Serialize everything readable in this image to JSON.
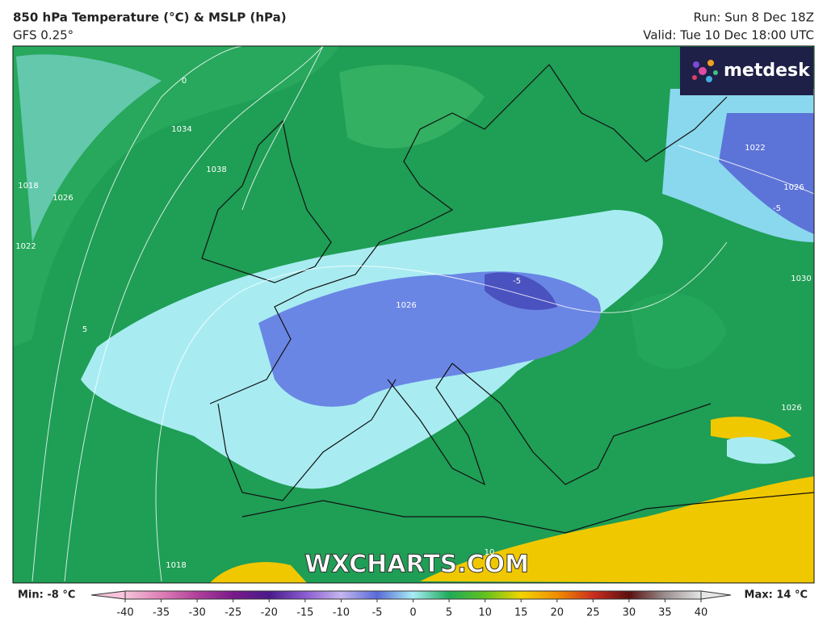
{
  "header": {
    "title": "850 hPa Temperature (°C) & MSLP (hPa)",
    "model": "GFS 0.25°",
    "run": "Run: Sun 8 Dec 18Z",
    "valid": "Valid: Tue 10 Dec 18:00 UTC"
  },
  "logo": "metdesk",
  "watermark": "WXCHARTS.COM",
  "contour_labels": [
    "1034",
    "1038",
    "1026",
    "1018",
    "1022",
    "1026",
    "1022",
    "1026",
    "1018",
    "1026",
    "10",
    "-5",
    "0",
    "5",
    "-5",
    "1030"
  ],
  "colorbar": {
    "min_label": "Min: -8 °C",
    "max_label": "Max: 14 °C",
    "ticks": [
      -40,
      -35,
      -30,
      -25,
      -20,
      -15,
      -10,
      -5,
      0,
      5,
      10,
      15,
      20,
      25,
      30,
      35,
      40
    ],
    "colors": [
      "#f5c4da",
      "#de7fb6",
      "#b0409a",
      "#7a1a8a",
      "#4a1a8a",
      "#8a5ad0",
      "#c4b6ee",
      "#5a6ad8",
      "#a6eef4",
      "#1faa5a",
      "#62c21e",
      "#f2d400",
      "#f08e00",
      "#cc2e1e",
      "#5a1010",
      "#9a8e8e",
      "#e6e6e6"
    ]
  }
}
